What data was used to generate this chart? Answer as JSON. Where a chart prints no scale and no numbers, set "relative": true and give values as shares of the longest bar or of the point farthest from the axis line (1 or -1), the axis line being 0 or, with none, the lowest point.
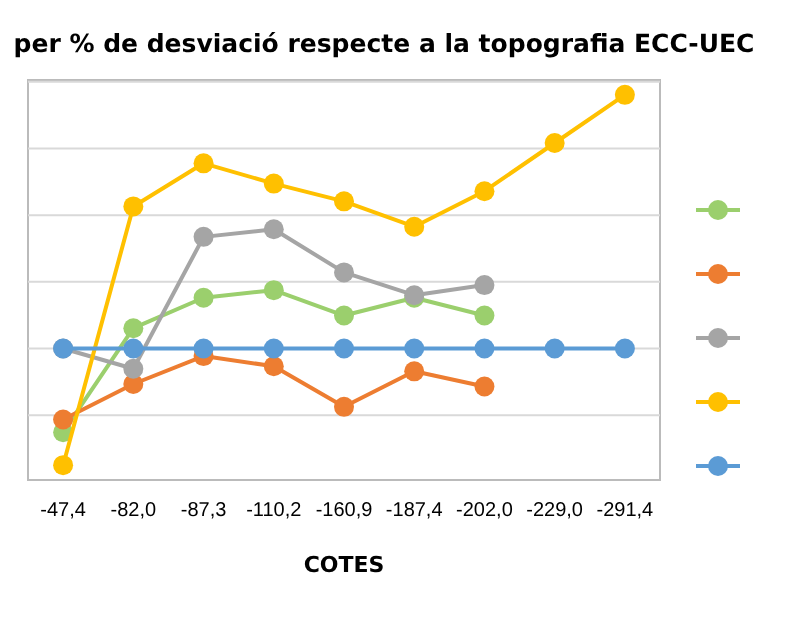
{
  "chart_data": {
    "type": "line",
    "title": "per % de desviació respecte a la topografia ECC-UEC",
    "xlabel": "COTES",
    "relative": true,
    "categories": [
      "-47,4",
      "-82,0",
      "-87,3",
      "-110,2",
      "-160,9",
      "-187,4",
      "-202,0",
      "-229,0",
      "-291,4"
    ],
    "series": [
      {
        "color": "#9bcf6d",
        "values": [
          -0.33,
          0.08,
          0.2,
          0.23,
          0.13,
          0.2,
          0.13,
          null,
          null
        ]
      },
      {
        "color": "#ed7d31",
        "values": [
          -0.28,
          -0.14,
          -0.03,
          -0.07,
          -0.23,
          -0.09,
          -0.15,
          null,
          null
        ]
      },
      {
        "color": "#a5a5a5",
        "values": [
          0,
          -0.08,
          0.44,
          0.47,
          0.3,
          0.21,
          0.25,
          null,
          null
        ]
      },
      {
        "color": "#ffc000",
        "values": [
          -0.46,
          0.56,
          0.73,
          0.65,
          0.58,
          0.48,
          0.62,
          0.81,
          1
        ]
      },
      {
        "color": "#5b9bd5",
        "values": [
          0,
          0,
          0,
          0,
          0,
          0,
          0,
          0,
          0
        ]
      }
    ],
    "grid": true,
    "marker": "circle",
    "line_style": "solid"
  }
}
